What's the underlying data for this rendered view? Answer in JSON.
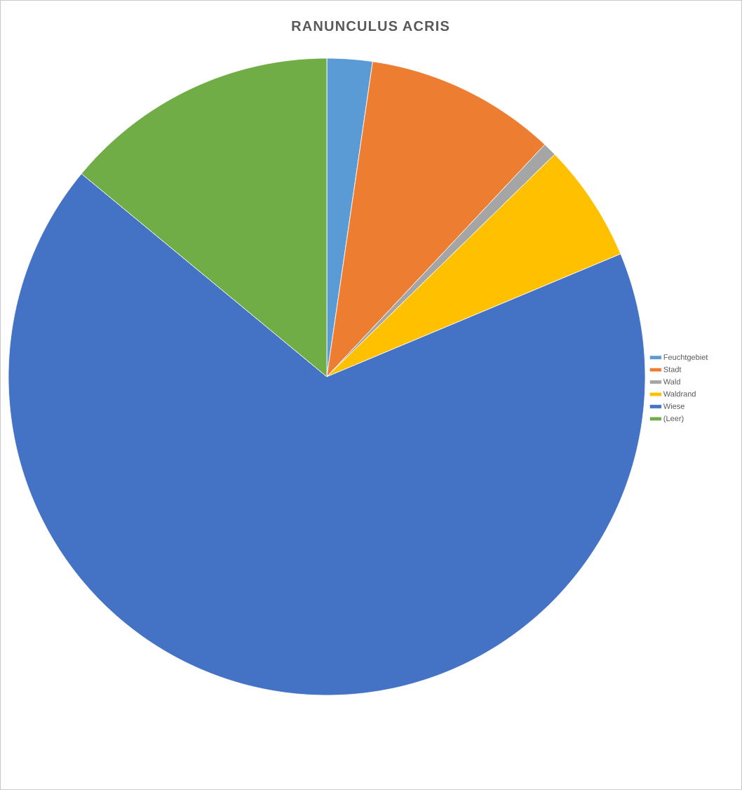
{
  "chart_data": {
    "type": "pie",
    "title": "RANUNCULUS ACRIS",
    "categories": [
      "Feuchtgebiet",
      "Stadt",
      "Wald",
      "Waldrand",
      "Wiese",
      "(Leer)"
    ],
    "values": [
      2.3,
      9.7,
      0.7,
      6.0,
      67.3,
      14.0
    ],
    "colors": [
      "#5b9bd5",
      "#ed7d31",
      "#a5a5a5",
      "#ffc000",
      "#4472c4",
      "#70ad47"
    ],
    "legend": "right"
  }
}
